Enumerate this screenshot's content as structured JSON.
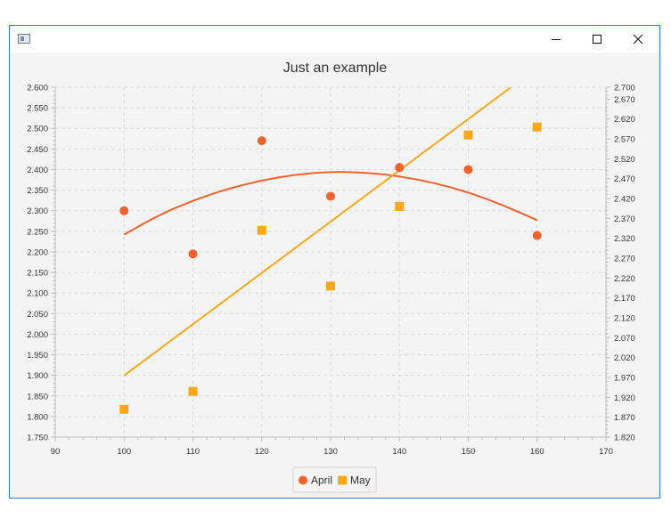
{
  "window": {
    "icon": "window-app-icon",
    "controls": [
      "minimize-icon",
      "maximize-icon",
      "close-icon"
    ]
  },
  "colors": {
    "april": "#f3622d",
    "may": "#fba71b",
    "grid": "#dcdcdc",
    "axis": "#bdbdbd",
    "plot_background": "#f4f4f4"
  },
  "chart_data": {
    "type": "scatter",
    "title": "Just an example",
    "xlabel": "",
    "ylabel": "",
    "xlim": [
      90,
      170
    ],
    "ylim": [
      1.75,
      2.6
    ],
    "y2lim": [
      1.82,
      2.7
    ],
    "x_ticks": [
      "90",
      "100",
      "110",
      "120",
      "130",
      "140",
      "150",
      "160",
      "170"
    ],
    "y_ticks": [
      "1.750",
      "1.800",
      "1.850",
      "1.900",
      "1.950",
      "2.000",
      "2.050",
      "2.100",
      "2.150",
      "2.200",
      "2.250",
      "2.300",
      "2.350",
      "2.400",
      "2.450",
      "2.500",
      "2.550",
      "2.600"
    ],
    "y2_ticks": [
      "1.820",
      "1.870",
      "1.920",
      "1.970",
      "2.020",
      "2.070",
      "2.120",
      "2.170",
      "2.220",
      "2.270",
      "2.320",
      "2.370",
      "2.420",
      "2.470",
      "2.520",
      "2.570",
      "2.620",
      "2.670",
      "2.700"
    ],
    "grid": true,
    "legend_position": "bottom",
    "series": [
      {
        "name": "April",
        "marker": "circle",
        "axis": "left",
        "x": [
          100,
          110,
          120,
          130,
          140,
          150,
          160
        ],
        "y": [
          2.3,
          2.195,
          2.47,
          2.335,
          2.405,
          2.4,
          2.24
        ],
        "fit": {
          "kind": "quadratic",
          "x": [
            100,
            105,
            110,
            115,
            120,
            125,
            130,
            135,
            140,
            145,
            150,
            155,
            160
          ],
          "y": [
            2.242,
            2.289,
            2.325,
            2.353,
            2.374,
            2.388,
            2.395,
            2.393,
            2.384,
            2.368,
            2.345,
            2.314,
            2.277
          ]
        }
      },
      {
        "name": "May",
        "marker": "square",
        "axis": "right",
        "x": [
          100,
          110,
          120,
          130,
          140,
          150,
          160
        ],
        "y": [
          1.89,
          1.935,
          2.34,
          2.2,
          2.4,
          2.58,
          2.6
        ],
        "fit": {
          "kind": "linear",
          "x": [
            100,
            156.2
          ],
          "y": [
            1.975,
            2.7
          ]
        }
      }
    ]
  }
}
